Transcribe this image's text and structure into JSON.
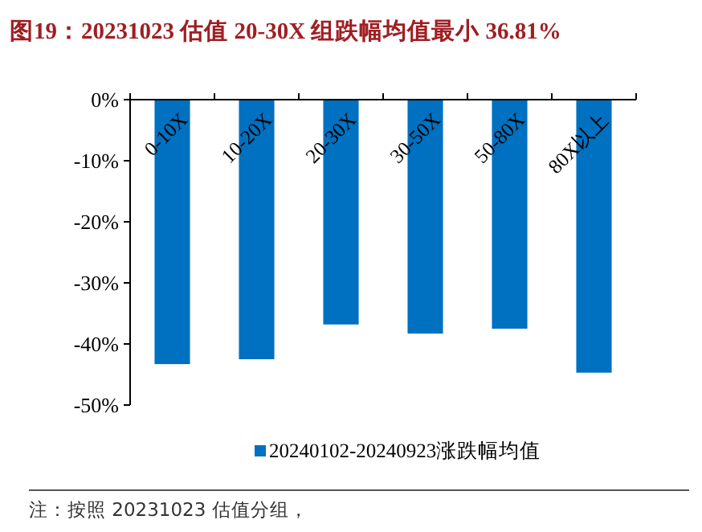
{
  "chart_data": {
    "type": "bar",
    "title": "图19：20231023 估值 20-30X 组跌幅均值最小 36.81%",
    "categories": [
      "0-10X",
      "10-20X",
      "20-30X",
      "30-50X",
      "50-80X",
      "80X以上"
    ],
    "series": [
      {
        "name": "20240102-20240923涨跌幅均值",
        "color": "#0070c0",
        "values": [
          -43.3,
          -42.5,
          -36.81,
          -38.3,
          -37.5,
          -44.7
        ]
      }
    ],
    "ylim": [
      -50,
      0
    ],
    "yticks": [
      {
        "value": -50,
        "label": "-50%"
      },
      {
        "value": -40,
        "label": "-40%"
      },
      {
        "value": -30,
        "label": "-30%"
      },
      {
        "value": -20,
        "label": "-20%"
      },
      {
        "value": -10,
        "label": "-10%"
      },
      {
        "value": 0,
        "label": "0%"
      }
    ],
    "legend": "bottom",
    "grid": false,
    "annotations": [
      "注：按照 20231023 估值分组，"
    ]
  }
}
